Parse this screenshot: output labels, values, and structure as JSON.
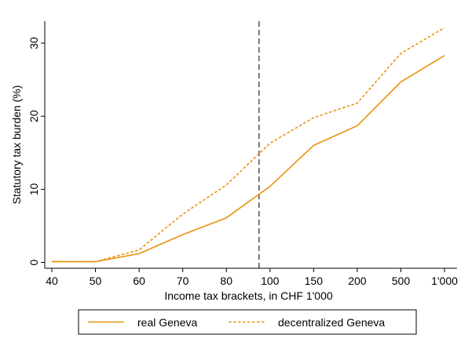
{
  "chart_data": {
    "type": "line",
    "categories": [
      "40",
      "50",
      "60",
      "70",
      "80",
      "100",
      "150",
      "200",
      "500",
      "1'000"
    ],
    "series": [
      {
        "name": "real Geneva",
        "style": "solid",
        "values": [
          0.1,
          0.1,
          1.2,
          3.8,
          6.1,
          10.4,
          16.0,
          18.7,
          24.7,
          28.3
        ]
      },
      {
        "name": "decentralized Geneva",
        "style": "dashed",
        "values": [
          0.1,
          0.1,
          1.7,
          6.6,
          10.6,
          16.3,
          19.8,
          21.8,
          28.6,
          32.1
        ]
      }
    ],
    "ylabel": "Statutory tax burden (%)",
    "xlabel": "Income tax brackets, in CHF 1'000",
    "ylim": [
      -0.8,
      33
    ],
    "yticks": [
      0,
      10,
      20,
      30
    ],
    "vline": {
      "category_index": 4.75,
      "style": "dashed",
      "color": "#444444"
    },
    "grid": false,
    "legend": "bottom",
    "colors": {
      "series": "#E8920E",
      "axis": "#000000",
      "vline": "#444444",
      "legend_border": "#000000"
    }
  }
}
